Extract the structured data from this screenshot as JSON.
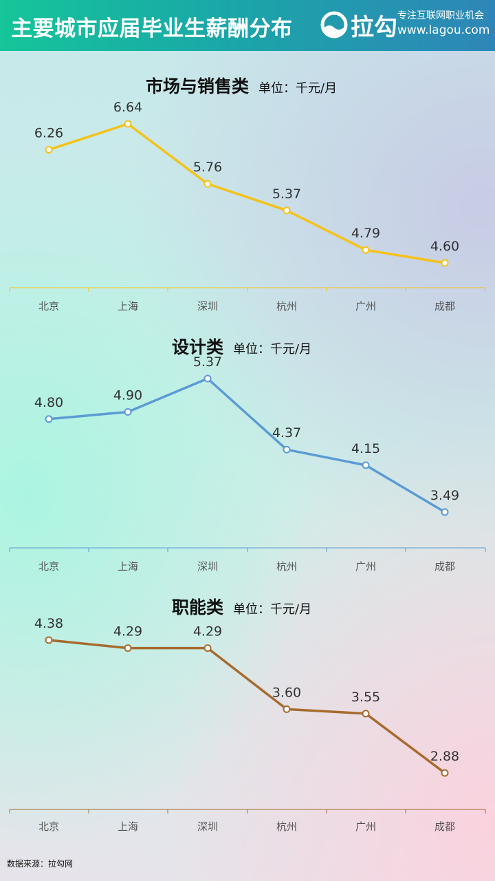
{
  "header": {
    "title": "主要城市应届毕业生薪酬分布",
    "logo_text": "拉勾",
    "logo_slogan": "专注互联网职业机会",
    "logo_url": "www.lagou.com"
  },
  "chart_data": [
    {
      "type": "line",
      "title": "市场与销售类",
      "subtitle": "单位：千元/月",
      "categories": [
        "北京",
        "上海",
        "深圳",
        "杭州",
        "广州",
        "成都"
      ],
      "values": [
        6.26,
        6.64,
        5.76,
        5.37,
        4.79,
        4.6
      ],
      "labels": [
        "6.26",
        "6.64",
        "5.76",
        "5.37",
        "4.79",
        "4.60"
      ],
      "color": "#f5c218",
      "ylim": [
        0,
        7
      ]
    },
    {
      "type": "line",
      "title": "设计类",
      "subtitle": "单位：千元/月",
      "categories": [
        "北京",
        "上海",
        "深圳",
        "杭州",
        "广州",
        "成都"
      ],
      "values": [
        4.8,
        4.9,
        5.37,
        4.37,
        4.15,
        3.49
      ],
      "labels": [
        "4.80",
        "4.90",
        "5.37",
        "4.37",
        "4.15",
        "3.49"
      ],
      "color": "#5b9bd5",
      "ylim": [
        0,
        6
      ]
    },
    {
      "type": "line",
      "title": "职能类",
      "subtitle": "单位：千元/月",
      "categories": [
        "北京",
        "上海",
        "深圳",
        "杭州",
        "广州",
        "成都"
      ],
      "values": [
        4.38,
        4.29,
        4.29,
        3.6,
        3.55,
        2.88
      ],
      "labels": [
        "4.38",
        "4.29",
        "4.29",
        "3.60",
        "3.55",
        "2.88"
      ],
      "color": "#a66b2e",
      "ylim": [
        0,
        4.8
      ]
    }
  ],
  "footer": {
    "source": "数据来源：拉勾网"
  }
}
